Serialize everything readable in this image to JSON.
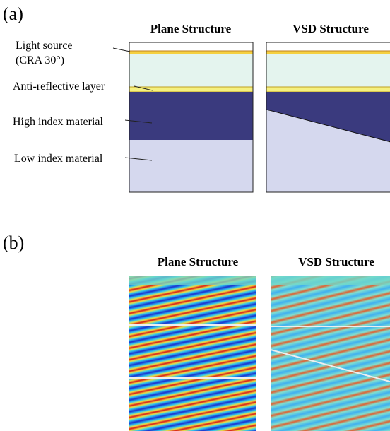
{
  "panel_a": {
    "label": "(a)",
    "titles": [
      "Plane Structure",
      "VSD Structure"
    ],
    "layer_labels": [
      "Light source",
      "(CRA 30°)",
      "Anti-reflective layer",
      "High index material",
      "Low index material"
    ]
  },
  "panel_b": {
    "label": "(b)",
    "titles": [
      "Plane Structure",
      "VSD Structure"
    ]
  }
}
